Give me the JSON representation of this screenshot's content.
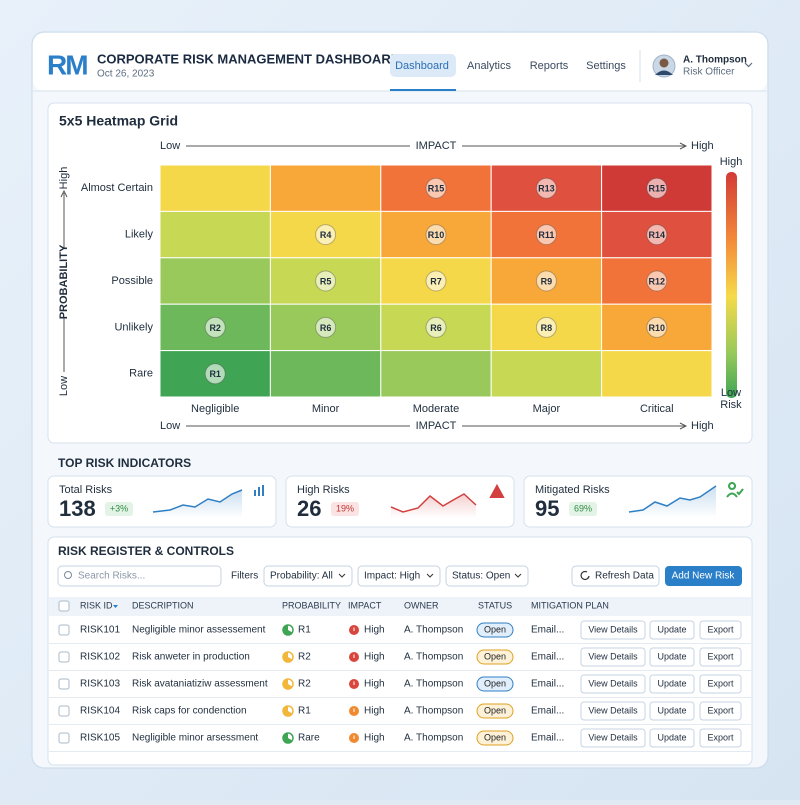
{
  "header": {
    "logo": "RM",
    "title": "CORPORATE RISK MANAGEMENT DASHBOARD",
    "date": "Oct 26, 2023",
    "nav": [
      "Dashboard",
      "Analytics",
      "Reports",
      "Settings"
    ],
    "user": {
      "name": "A. Thompson",
      "role": "Risk Officer"
    }
  },
  "heatmap": {
    "title": "5x5 Heatmap Grid",
    "impact_label": "IMPACT",
    "probability_label": "PROBABILITY",
    "low": "Low",
    "high": "High",
    "rows": [
      "Almost Certain",
      "Likely",
      "Possible",
      "Unlikely",
      "Rare"
    ],
    "columns": [
      "Negligible",
      "Minor",
      "Moderate",
      "Major",
      "Critical"
    ],
    "cells": [
      [
        null,
        null,
        "R15",
        "R13",
        "R15"
      ],
      [
        null,
        "R4",
        "R10",
        "R11",
        "R14"
      ],
      [
        null,
        "R5",
        "R7",
        "R9",
        "R12"
      ],
      [
        "R2",
        "R6",
        "R6",
        "R8",
        "R10"
      ],
      [
        "R1",
        null,
        null,
        null,
        null
      ]
    ],
    "legend": {
      "high": "High",
      "low": "Low",
      "unit": "Risk"
    }
  },
  "indicators": {
    "title": "TOP RISK INDICATORS",
    "items": [
      {
        "label": "Total Risks",
        "value": 138,
        "change": "+3%",
        "color": "#2f7fc4"
      },
      {
        "label": "High Risks",
        "value": 26,
        "change": "19%",
        "color": "#d23f3f"
      },
      {
        "label": "Mitigated Risks",
        "value": 95,
        "change": "69%",
        "color": "#2f7fc4"
      }
    ]
  },
  "register": {
    "title": "RISK REGISTER & CONTROLS",
    "search_placeholder": "Search Risks...",
    "filters_label": "Filters",
    "filters": [
      "Probability: All",
      "Impact: High",
      "Status: Open"
    ],
    "refresh": "Refresh Data",
    "add": "Add New Risk",
    "columns": [
      "RISK ID",
      "DESCRIPTION",
      "PROBABILITY",
      "IMPACT",
      "OWNER",
      "STATUS",
      "MITIGATION PLAN"
    ],
    "actions": [
      "View Details",
      "Update",
      "Export"
    ],
    "rows": [
      {
        "id": "RISK101",
        "description": "Negligible minor assessement",
        "probability": "R1",
        "probability_color": "#3fa554",
        "impact": "High",
        "impact_color": "#d9463e",
        "owner": "A. Thompson",
        "status": "Open",
        "status_color": "#2f7fc4",
        "mitigation": "Email..."
      },
      {
        "id": "RISK102",
        "description": "Risk anweter in production",
        "probability": "R2",
        "probability_color": "#f2b63a",
        "impact": "High",
        "impact_color": "#d9463e",
        "owner": "A. Thompson",
        "status": "Open",
        "status_color": "#e0a020",
        "mitigation": "Email..."
      },
      {
        "id": "RISK103",
        "description": "Risk avataniatiziw assessment",
        "probability": "R2",
        "probability_color": "#f2b63a",
        "impact": "High",
        "impact_color": "#d9463e",
        "owner": "A. Thompson",
        "status": "Open",
        "status_color": "#2f7fc4",
        "mitigation": "Email..."
      },
      {
        "id": "RISK104",
        "description": "Risk caps for condenction",
        "probability": "R1",
        "probability_color": "#f2b63a",
        "impact": "High",
        "impact_color": "#f08a30",
        "owner": "A. Thompson",
        "status": "Open",
        "status_color": "#e0a020",
        "mitigation": "Email..."
      },
      {
        "id": "RISK105",
        "description": "Negligible minor arsessment",
        "probability": "Rare",
        "probability_color": "#3fa554",
        "impact": "High",
        "impact_color": "#f08a30",
        "owner": "A. Thompson",
        "status": "Open",
        "status_color": "#e0a020",
        "mitigation": "Email..."
      }
    ]
  }
}
